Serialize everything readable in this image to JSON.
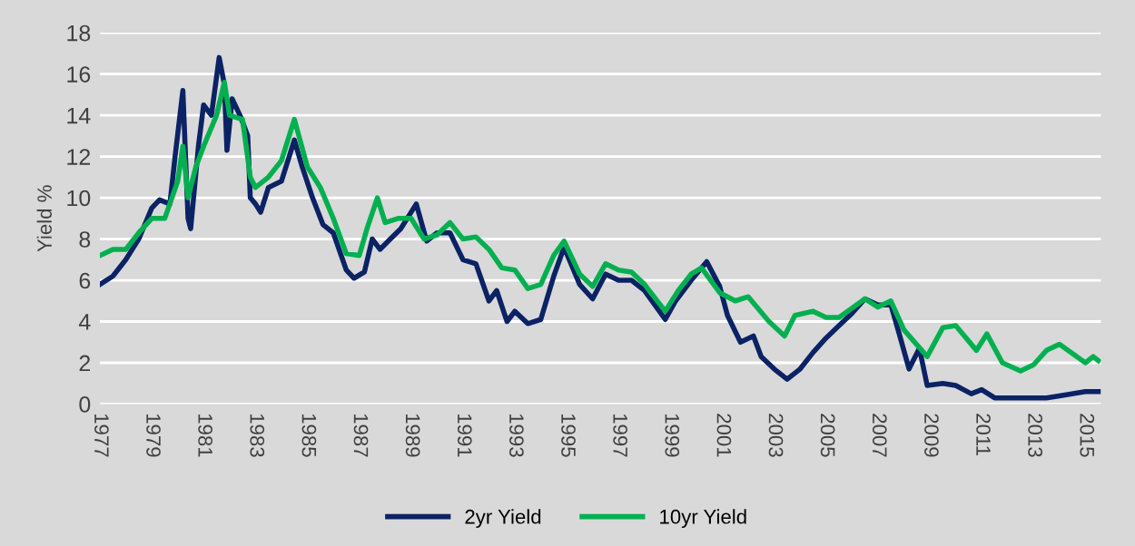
{
  "chart_data": {
    "type": "line",
    "ylabel": "Yield %",
    "xlim": [
      1977,
      2015.6
    ],
    "xticks": [
      1977,
      1979,
      1981,
      1983,
      1985,
      1987,
      1989,
      1991,
      1993,
      1995,
      1997,
      1999,
      2001,
      2003,
      2005,
      2007,
      2009,
      2011,
      2013,
      2015
    ],
    "ylim": [
      0,
      18
    ],
    "yticks": [
      0,
      2,
      4,
      6,
      8,
      10,
      12,
      14,
      16,
      18
    ],
    "grid": "y",
    "legend": "bottom",
    "marker": "none",
    "line_style": "solid",
    "series": [
      {
        "name": "2yr Yield",
        "color": "#0b2265",
        "x": [
          1977.0,
          1977.5,
          1978.0,
          1978.5,
          1979.0,
          1979.3,
          1979.7,
          1979.9,
          1980.2,
          1980.4,
          1980.5,
          1980.8,
          1981.0,
          1981.3,
          1981.6,
          1981.8,
          1981.9,
          1982.1,
          1982.4,
          1982.7,
          1982.8,
          1983.0,
          1983.2,
          1983.5,
          1984.0,
          1984.5,
          1984.8,
          1985.2,
          1985.6,
          1986.0,
          1986.5,
          1986.8,
          1987.2,
          1987.5,
          1987.8,
          1988.2,
          1988.6,
          1989.2,
          1989.6,
          1990.0,
          1990.5,
          1991.0,
          1991.5,
          1992.0,
          1992.3,
          1992.7,
          1993.0,
          1993.5,
          1994.0,
          1994.5,
          1994.9,
          1995.5,
          1996.0,
          1996.5,
          1997.0,
          1997.5,
          1998.0,
          1998.8,
          1999.2,
          1999.8,
          2000.4,
          2000.9,
          2001.2,
          2001.7,
          2002.2,
          2002.5,
          2003.0,
          2003.5,
          2004.0,
          2004.5,
          2005.0,
          2005.5,
          2006.0,
          2006.5,
          2007.0,
          2007.5,
          2007.8,
          2008.2,
          2008.6,
          2008.9,
          2009.5,
          2010.0,
          2010.6,
          2011.0,
          2011.5,
          2012.5,
          2013.5,
          2014.0,
          2015.0,
          2015.5
        ],
        "values": [
          5.8,
          6.2,
          7.0,
          8.0,
          9.5,
          9.9,
          9.7,
          12.0,
          15.2,
          9.0,
          8.5,
          12.5,
          14.5,
          14.0,
          16.8,
          15.5,
          12.3,
          14.8,
          14.0,
          13.0,
          10.0,
          9.7,
          9.3,
          10.5,
          10.8,
          12.8,
          11.5,
          10.0,
          8.7,
          8.3,
          6.5,
          6.1,
          6.4,
          8.0,
          7.5,
          8.0,
          8.5,
          9.7,
          7.9,
          8.3,
          8.3,
          7.0,
          6.8,
          5.0,
          5.5,
          4.0,
          4.5,
          3.9,
          4.1,
          6.2,
          7.6,
          5.8,
          5.1,
          6.3,
          6.0,
          6.0,
          5.5,
          4.1,
          5.0,
          6.0,
          6.9,
          5.7,
          4.3,
          3.0,
          3.3,
          2.3,
          1.7,
          1.2,
          1.7,
          2.5,
          3.2,
          3.8,
          4.4,
          5.1,
          4.8,
          4.8,
          3.5,
          1.7,
          2.7,
          0.9,
          1.0,
          0.9,
          0.5,
          0.7,
          0.3,
          0.3,
          0.3,
          0.4,
          0.6,
          0.6
        ]
      },
      {
        "name": "10yr Yield",
        "color": "#00b050",
        "x": [
          1977.0,
          1977.5,
          1978.0,
          1978.5,
          1979.0,
          1979.5,
          1980.0,
          1980.2,
          1980.4,
          1980.7,
          1981.0,
          1981.5,
          1981.8,
          1982.0,
          1982.5,
          1982.8,
          1983.0,
          1983.5,
          1984.0,
          1984.5,
          1985.0,
          1985.5,
          1986.0,
          1986.5,
          1987.0,
          1987.3,
          1987.7,
          1988.0,
          1988.5,
          1989.0,
          1989.5,
          1990.0,
          1990.5,
          1991.0,
          1991.5,
          1992.0,
          1992.5,
          1993.0,
          1993.5,
          1994.0,
          1994.5,
          1994.9,
          1995.5,
          1996.0,
          1996.5,
          1997.0,
          1997.5,
          1998.0,
          1998.8,
          1999.3,
          1999.8,
          2000.2,
          2000.9,
          2001.5,
          2002.0,
          2002.8,
          2003.4,
          2003.8,
          2004.5,
          2005.0,
          2005.5,
          2006.5,
          2007.0,
          2007.5,
          2008.0,
          2008.9,
          2009.5,
          2010.0,
          2010.8,
          2011.2,
          2011.8,
          2012.5,
          2013.0,
          2013.5,
          2014.0,
          2015.0,
          2015.3,
          2015.5
        ],
        "values": [
          7.2,
          7.5,
          7.5,
          8.3,
          9.0,
          9.0,
          10.8,
          12.5,
          10.0,
          11.5,
          12.5,
          14.0,
          15.6,
          14.0,
          13.8,
          11.0,
          10.5,
          11.0,
          11.8,
          13.8,
          11.5,
          10.5,
          9.0,
          7.3,
          7.2,
          8.5,
          10.0,
          8.8,
          9.0,
          9.0,
          8.0,
          8.2,
          8.8,
          8.0,
          8.1,
          7.5,
          6.6,
          6.5,
          5.6,
          5.8,
          7.2,
          7.9,
          6.3,
          5.7,
          6.8,
          6.5,
          6.4,
          5.8,
          4.5,
          5.5,
          6.3,
          6.6,
          5.4,
          5.0,
          5.2,
          4.0,
          3.3,
          4.3,
          4.5,
          4.2,
          4.2,
          5.1,
          4.7,
          5.0,
          3.6,
          2.3,
          3.7,
          3.8,
          2.6,
          3.4,
          2.0,
          1.6,
          1.9,
          2.6,
          2.9,
          2.0,
          2.3,
          2.1
        ]
      }
    ]
  }
}
